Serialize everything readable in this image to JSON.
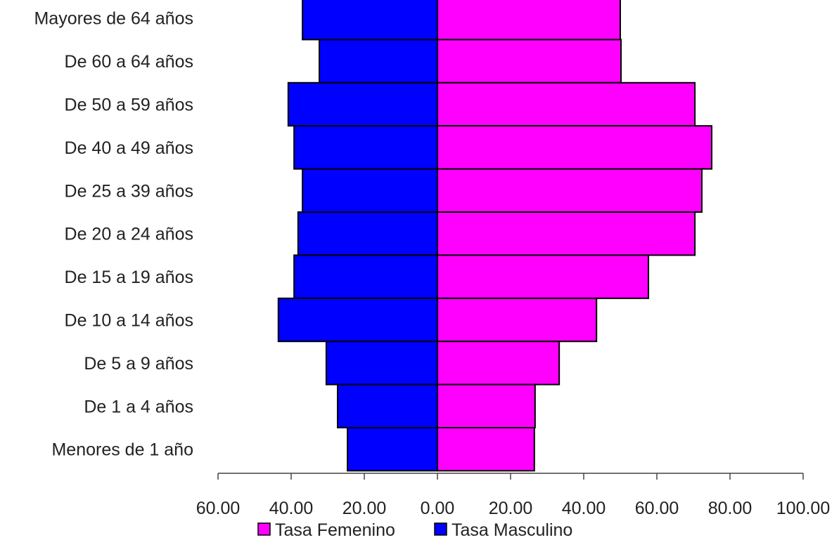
{
  "chart_data": {
    "type": "bar",
    "orientation": "horizontal",
    "title": "",
    "xlabel": "",
    "ylabel": "",
    "categories": [
      "Mayores de 64 años",
      "De 60 a 64 años",
      "De 50 a 59 años",
      "De 40 a 49 años",
      "De 25 a 39 años",
      "De 20 a 24 años",
      "De 15 a 19 años",
      "De 10 a 14 años",
      "De 5 a 9 años",
      "De 1 a 4 años",
      "Menores de 1 año"
    ],
    "series": [
      {
        "name": "Tasa Femenino",
        "color": "#FF00FF",
        "values": [
          50.0,
          50.2,
          70.4,
          75.0,
          72.3,
          70.4,
          57.7,
          43.5,
          33.3,
          26.7,
          26.5
        ]
      },
      {
        "name": "Tasa Masculino",
        "color": "#0000FF",
        "values": [
          36.9,
          32.3,
          40.8,
          39.2,
          36.9,
          38.1,
          39.2,
          43.5,
          30.4,
          27.3,
          24.6
        ]
      }
    ],
    "masculino_plotted_left": true,
    "xlim": [
      -60,
      100
    ],
    "xticks": [
      -60,
      -40,
      -20,
      0,
      20,
      40,
      60,
      80,
      100
    ],
    "xtick_labels": [
      "60.00",
      "40.00",
      "20.00",
      "0.00",
      "20.00",
      "40.00",
      "60.00",
      "80.00",
      "100.00"
    ],
    "grid": false,
    "legend_position": "bottom"
  }
}
